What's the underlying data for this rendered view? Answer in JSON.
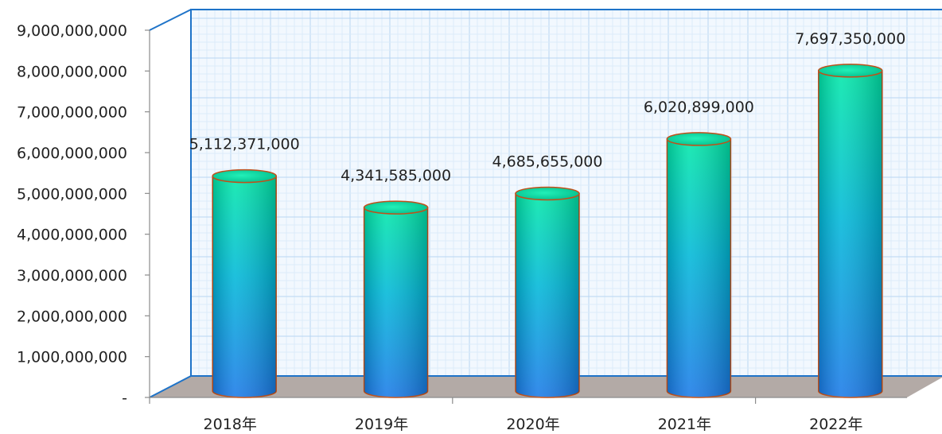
{
  "chart_data": {
    "type": "bar",
    "title": "",
    "xlabel": "",
    "ylabel": "",
    "categories": [
      "2018年",
      "2019年",
      "2020年",
      "2021年",
      "2022年"
    ],
    "values": [
      5112371000,
      4341585000,
      4685655000,
      6020899000,
      7697350000
    ],
    "data_labels": [
      "5,112,371,000",
      "4,341,585,000",
      "4,685,655,000",
      "6,020,899,000",
      "7,697,350,000"
    ],
    "ylim": [
      0,
      9000000000
    ],
    "y_ticks": [
      0,
      1000000000,
      2000000000,
      3000000000,
      4000000000,
      5000000000,
      6000000000,
      7000000000,
      8000000000,
      9000000000
    ],
    "y_tick_labels": [
      "-",
      "1,000,000,000",
      "2,000,000,000",
      "3,000,000,000",
      "4,000,000,000",
      "5,000,000,000",
      "6,000,000,000",
      "7,000,000,000",
      "8,000,000,000",
      "9,000,000,000"
    ],
    "grid": true,
    "bar_shape": "cylinder",
    "colors": {
      "bar_top": "#00e8a8",
      "bar_mid": "#00b8d8",
      "bar_bottom": "#1a7ae8",
      "bar_outline": "#c0501a",
      "frame": "#1e73c8",
      "grid_major": "#b8d6f2",
      "grid_minor": "#dcebf9",
      "floor": "#b3aaa6",
      "plot_bg": "#f2f8fe"
    }
  }
}
